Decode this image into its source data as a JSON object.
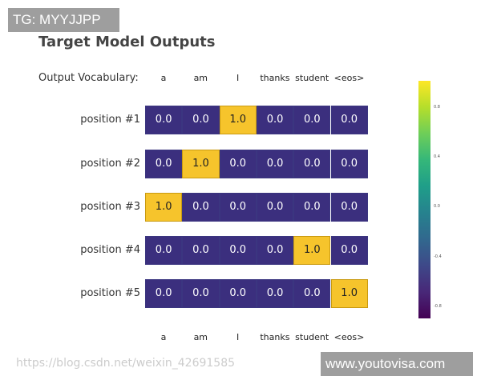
{
  "watermark_top": "TG: MYYJJPP",
  "title": "Target Model Outputs",
  "vocab_label": "Output Vocabulary:",
  "vocab": [
    "a",
    "am",
    "I",
    "thanks",
    "student",
    "<eos>"
  ],
  "rows": [
    {
      "label": "position #1",
      "values": [
        "0.0",
        "0.0",
        "1.0",
        "0.0",
        "0.0",
        "0.0"
      ]
    },
    {
      "label": "position #2",
      "values": [
        "0.0",
        "1.0",
        "0.0",
        "0.0",
        "0.0",
        "0.0"
      ]
    },
    {
      "label": "position #3",
      "values": [
        "1.0",
        "0.0",
        "0.0",
        "0.0",
        "0.0",
        "0.0"
      ]
    },
    {
      "label": "position #4",
      "values": [
        "0.0",
        "0.0",
        "0.0",
        "0.0",
        "1.0",
        "0.0"
      ]
    },
    {
      "label": "position #5",
      "values": [
        "0.0",
        "0.0",
        "0.0",
        "0.0",
        "0.0",
        "1.0"
      ]
    }
  ],
  "colorbar": {
    "ticks": [
      "0.8",
      "0.4",
      "0.0",
      "-0.4",
      "-0.8"
    ],
    "colormap": "viridis"
  },
  "watermark_url": "https://blog.csdn.net/weixin_42691585",
  "watermark_site": "www.youtovisa.com",
  "colors": {
    "zero": "#3b2f7e",
    "one": "#f6c42c"
  }
}
